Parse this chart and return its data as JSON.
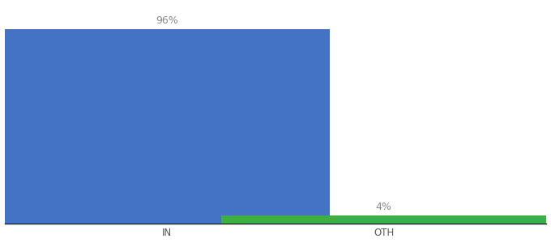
{
  "categories": [
    "IN",
    "OTH"
  ],
  "values": [
    96,
    4
  ],
  "bar_colors": [
    "#4472c4",
    "#3cb043"
  ],
  "label_texts": [
    "96%",
    "4%"
  ],
  "background_color": "#ffffff",
  "ylim": [
    0,
    108
  ],
  "bar_width": 0.6,
  "label_fontsize": 9,
  "tick_fontsize": 8.5,
  "label_color": "#888888",
  "axis_line_color": "#111111",
  "x_positions": [
    0.3,
    0.7
  ],
  "xlim": [
    0.0,
    1.0
  ]
}
